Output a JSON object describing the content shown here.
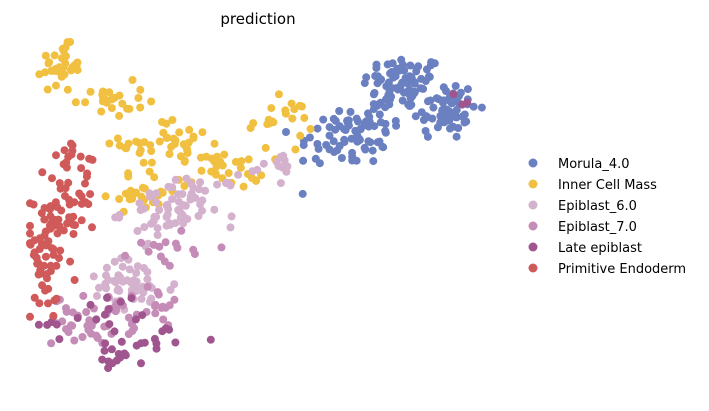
{
  "chart_data": {
    "type": "scatter",
    "title": "prediction",
    "xlabel": "",
    "ylabel": "",
    "xlim": [
      0,
      100
    ],
    "ylim": [
      0,
      100
    ],
    "axes_visible": false,
    "grid": false,
    "legend_position": "right",
    "series": [
      {
        "name": "Morula_4.0",
        "color": "#6a80c1",
        "clusters": [
          {
            "cx": 82,
            "cy": 88,
            "sx": 4.5,
            "sy": 4,
            "n": 70
          },
          {
            "cx": 91,
            "cy": 80,
            "sx": 3.5,
            "sy": 4.5,
            "n": 60
          },
          {
            "cx": 74,
            "cy": 76,
            "sx": 4.5,
            "sy": 4,
            "n": 45
          },
          {
            "cx": 66,
            "cy": 70,
            "sx": 4,
            "sy": 3.5,
            "n": 25
          },
          {
            "cx": 73,
            "cy": 67,
            "sx": 3,
            "sy": 2.5,
            "n": 10
          }
        ]
      },
      {
        "name": "Inner Cell Mass",
        "color": "#f1c040",
        "clusters": [
          {
            "cx": 7,
            "cy": 93,
            "sx": 2,
            "sy": 3,
            "n": 35
          },
          {
            "cx": 17,
            "cy": 83,
            "sx": 4,
            "sy": 2.5,
            "n": 25
          },
          {
            "cx": 30,
            "cy": 70,
            "sx": 5,
            "sy": 3.5,
            "n": 40
          },
          {
            "cx": 25,
            "cy": 56,
            "sx": 4,
            "sy": 3,
            "n": 25
          },
          {
            "cx": 42,
            "cy": 63,
            "sx": 5,
            "sy": 3,
            "n": 35
          },
          {
            "cx": 55,
            "cy": 77,
            "sx": 3.5,
            "sy": 3,
            "n": 20
          }
        ]
      },
      {
        "name": "Epiblast_6.0",
        "color": "#d4b1cc",
        "clusters": [
          {
            "cx": 30,
            "cy": 50,
            "sx": 5,
            "sy": 4,
            "n": 50
          },
          {
            "cx": 37,
            "cy": 55,
            "sx": 4,
            "sy": 3,
            "n": 20
          },
          {
            "cx": 22,
            "cy": 28,
            "sx": 5,
            "sy": 4,
            "n": 50
          },
          {
            "cx": 55,
            "cy": 64,
            "sx": 3,
            "sy": 2,
            "n": 12
          }
        ]
      },
      {
        "name": "Epiblast_7.0",
        "color": "#c48cb6",
        "clusters": [
          {
            "cx": 14,
            "cy": 18,
            "sx": 4.5,
            "sy": 3.5,
            "n": 45
          },
          {
            "cx": 25,
            "cy": 22,
            "sx": 4,
            "sy": 3,
            "n": 20
          },
          {
            "cx": 30,
            "cy": 40,
            "sx": 4,
            "sy": 3,
            "n": 15
          }
        ]
      },
      {
        "name": "Late epiblast",
        "color": "#a0558e",
        "clusters": [
          {
            "cx": 20,
            "cy": 8,
            "sx": 3,
            "sy": 2.5,
            "n": 15
          },
          {
            "cx": 6,
            "cy": 17,
            "sx": 2,
            "sy": 2,
            "n": 6
          },
          {
            "cx": 18,
            "cy": 21,
            "sx": 3,
            "sy": 2.5,
            "n": 12
          },
          {
            "cx": 28,
            "cy": 13,
            "sx": 4,
            "sy": 3,
            "n": 10
          },
          {
            "cx": 95,
            "cy": 83,
            "sx": 1,
            "sy": 1,
            "n": 3
          }
        ]
      },
      {
        "name": "Primitive Endoderm",
        "color": "#d05a5a",
        "clusters": [
          {
            "cx": 5,
            "cy": 45,
            "sx": 3.5,
            "sy": 5,
            "n": 45
          },
          {
            "cx": 3,
            "cy": 35,
            "sx": 2,
            "sy": 5,
            "n": 25
          },
          {
            "cx": 10,
            "cy": 58,
            "sx": 4,
            "sy": 3.5,
            "n": 20
          },
          {
            "cx": 8,
            "cy": 68,
            "sx": 3,
            "sy": 3,
            "n": 10
          },
          {
            "cx": 3,
            "cy": 24,
            "sx": 2,
            "sy": 2.5,
            "n": 8
          }
        ]
      }
    ]
  }
}
